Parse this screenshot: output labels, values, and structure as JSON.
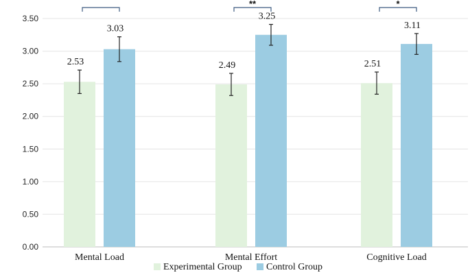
{
  "chart_data": {
    "type": "bar",
    "title": "",
    "xlabel": "",
    "ylabel": "",
    "ylim": [
      0,
      3.5
    ],
    "yticks": [
      "0.00",
      "0.50",
      "1.00",
      "1.50",
      "2.00",
      "2.50",
      "3.00",
      "3.50"
    ],
    "grid": true,
    "legend_position": "bottom",
    "categories": [
      "Mental Load",
      "Mental Effort",
      "Cognitive Load"
    ],
    "series": [
      {
        "name": "Experimental Group",
        "color": "#e1f2dd",
        "values": [
          2.53,
          2.49,
          2.51
        ],
        "labels": [
          "2.53",
          "2.49",
          "2.51"
        ],
        "error": [
          0.18,
          0.17,
          0.17
        ]
      },
      {
        "name": "Control Group",
        "color": "#9ccce2",
        "values": [
          3.03,
          3.25,
          3.11
        ],
        "labels": [
          "3.03",
          "3.25",
          "3.11"
        ],
        "error": [
          0.19,
          0.16,
          0.16
        ]
      }
    ],
    "significance": [
      "",
      "**",
      "*"
    ]
  }
}
